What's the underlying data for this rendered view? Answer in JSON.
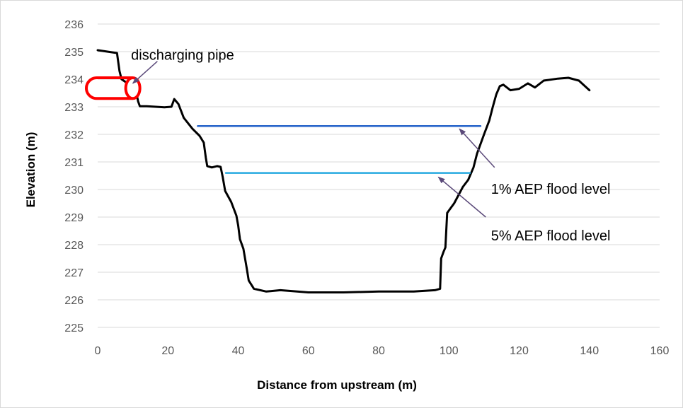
{
  "chart_data": {
    "type": "line",
    "title": "",
    "xlabel": "Distance from upstream (m)",
    "ylabel": "Elevation (m)",
    "xlim": [
      0,
      160
    ],
    "ylim": [
      225,
      236
    ],
    "x_ticks": [
      0,
      20,
      40,
      60,
      80,
      100,
      120,
      140,
      160
    ],
    "y_ticks": [
      225,
      226,
      227,
      228,
      229,
      230,
      231,
      232,
      233,
      234,
      235,
      236
    ],
    "grid": "horizontal",
    "legend": "none",
    "series": [
      {
        "color": "#000000",
        "points": [
          [
            0,
            235.05
          ],
          [
            5.5,
            234.95
          ],
          [
            6.2,
            234.3
          ],
          [
            6.8,
            234.0
          ],
          [
            8.5,
            233.85
          ],
          [
            10.5,
            233.8
          ],
          [
            11.5,
            233.2
          ],
          [
            12,
            233.02
          ],
          [
            14,
            233.02
          ],
          [
            19,
            232.98
          ],
          [
            21,
            233.0
          ],
          [
            21.8,
            233.28
          ],
          [
            23,
            233.1
          ],
          [
            24.5,
            232.6
          ],
          [
            27,
            232.2
          ],
          [
            29,
            231.95
          ],
          [
            30.2,
            231.7
          ],
          [
            30.8,
            231.15
          ],
          [
            31.2,
            230.85
          ],
          [
            32.5,
            230.8
          ],
          [
            34,
            230.85
          ],
          [
            35,
            230.82
          ],
          [
            35.6,
            230.45
          ],
          [
            36.3,
            229.95
          ],
          [
            38,
            229.55
          ],
          [
            39.5,
            229.05
          ],
          [
            40,
            228.7
          ],
          [
            40.5,
            228.2
          ],
          [
            41.5,
            227.85
          ],
          [
            42.5,
            227.1
          ],
          [
            43,
            226.7
          ],
          [
            44.5,
            226.4
          ],
          [
            48,
            226.3
          ],
          [
            52,
            226.35
          ],
          [
            60,
            226.27
          ],
          [
            70,
            226.27
          ],
          [
            80,
            226.3
          ],
          [
            90,
            226.3
          ],
          [
            96,
            226.35
          ],
          [
            97.5,
            226.4
          ],
          [
            97.8,
            227.5
          ],
          [
            98.5,
            227.75
          ],
          [
            99,
            227.9
          ],
          [
            99.5,
            229.15
          ],
          [
            101.5,
            229.5
          ],
          [
            104,
            230.1
          ],
          [
            105.5,
            230.35
          ],
          [
            107,
            230.8
          ],
          [
            108,
            231.3
          ],
          [
            110,
            232.0
          ],
          [
            111.5,
            232.5
          ],
          [
            112.5,
            233.0
          ],
          [
            113.5,
            233.45
          ],
          [
            114.5,
            233.75
          ],
          [
            115.5,
            233.8
          ],
          [
            117.5,
            233.6
          ],
          [
            120,
            233.65
          ],
          [
            122.5,
            233.85
          ],
          [
            124.5,
            233.7
          ],
          [
            127,
            233.95
          ],
          [
            131,
            234.02
          ],
          [
            134,
            234.05
          ],
          [
            137,
            233.95
          ],
          [
            140,
            233.6
          ]
        ]
      },
      {
        "color": "#2563c9",
        "points": [
          [
            28.5,
            232.3
          ],
          [
            109,
            232.3
          ]
        ]
      },
      {
        "color": "#27a9e0",
        "points": [
          [
            36.5,
            230.6
          ],
          [
            106,
            230.6
          ]
        ]
      }
    ],
    "annotations": [
      {
        "text": "discharging pipe",
        "x": 9.5,
        "y": 234.7
      },
      {
        "text": "1% AEP flood level",
        "x": 112,
        "y": 229.85
      },
      {
        "text": "5% AEP flood level",
        "x": 112,
        "y": 228.15
      }
    ],
    "arrows": [
      {
        "from": [
          17,
          234.65
        ],
        "to": [
          10,
          233.85
        ]
      },
      {
        "from": [
          113,
          230.8
        ],
        "to": [
          103,
          232.2
        ]
      },
      {
        "from": [
          110.5,
          229.0
        ],
        "to": [
          97,
          230.45
        ]
      }
    ],
    "pipe": {
      "x": [
        0,
        10
      ],
      "y": [
        233.3,
        234.05
      ],
      "color": "#ff0000"
    }
  }
}
